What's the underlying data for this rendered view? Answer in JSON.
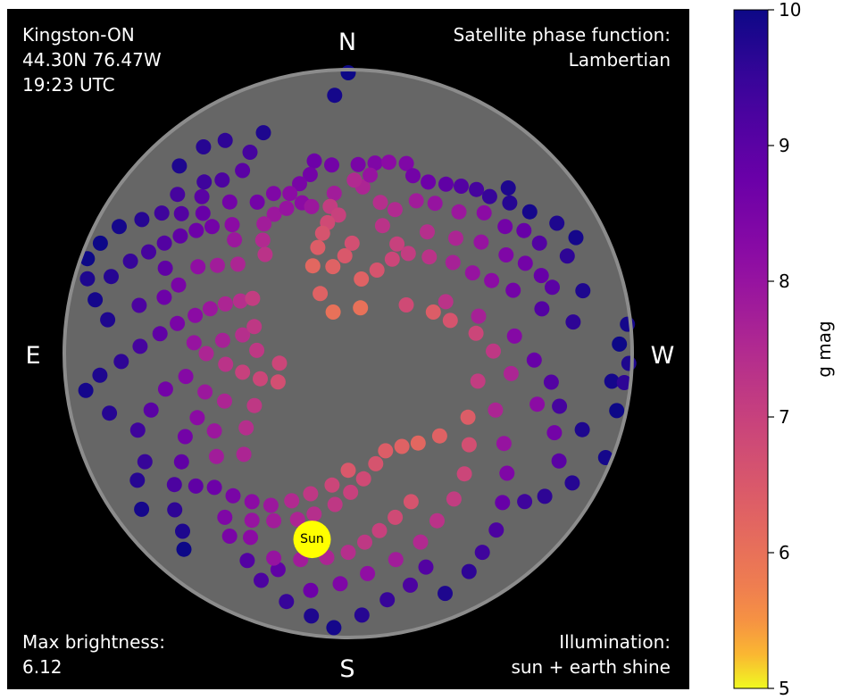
{
  "chart_data": {
    "type": "scatter",
    "projection": "polar sky map",
    "info": {
      "location": "Kingston-ON",
      "coords": "44.30N 76.47W",
      "time": "19:23 UTC",
      "phase_label": "Satellite phase function:",
      "phase_value": "Lambertian",
      "brightness_label": "Max brightness:",
      "brightness_value": "6.12",
      "illumination_label": "Illumination:",
      "illumination_value": "sun + earth shine"
    },
    "directions": {
      "north": "N",
      "south": "S",
      "east": "E",
      "west": "W"
    },
    "sun": {
      "label": "Sun",
      "az": 169,
      "alt": 30,
      "color": "#ffff00"
    },
    "colorbar": {
      "label": "g mag",
      "min": 5,
      "max": 10,
      "ticks": [
        "5",
        "6",
        "7",
        "8",
        "9",
        "10"
      ],
      "colormap": "plasma_r"
    },
    "background": "#000000",
    "sky_color": "#666666",
    "horizon_color": "#8c8c8c",
    "points": [
      [
        0,
        1,
        10
      ],
      [
        3,
        8,
        9.9
      ],
      [
        21,
        15,
        9.8
      ],
      [
        35,
        10,
        9.7
      ],
      [
        10,
        28,
        8.7
      ],
      [
        12,
        32,
        8.6
      ],
      [
        16,
        34,
        8.5
      ],
      [
        20,
        36,
        8.2
      ],
      [
        25,
        34,
        8.4
      ],
      [
        31,
        34,
        8.6
      ],
      [
        28,
        40,
        7.9
      ],
      [
        33,
        41,
        7.8
      ],
      [
        37,
        45,
        7.5
      ],
      [
        40,
        49,
        7.3
      ],
      [
        23,
        40,
        8.0
      ],
      [
        17,
        40,
        8.2
      ],
      [
        14,
        42,
        7.9
      ],
      [
        5,
        30,
        8.6
      ],
      [
        357,
        30,
        8.5
      ],
      [
        352,
        29,
        8.4
      ],
      [
        348,
        28,
        8.2
      ],
      [
        343,
        27,
        8.4
      ],
      [
        340,
        30,
        8.6
      ],
      [
        335,
        30,
        8.7
      ],
      [
        330,
        28,
        8.9
      ],
      [
        326,
        26,
        9.1
      ],
      [
        322,
        24,
        9.3
      ],
      [
        318,
        23,
        9.5
      ],
      [
        313,
        20,
        9.7
      ],
      [
        316,
        17,
        9.8
      ],
      [
        308,
        17,
        9.9
      ],
      [
        302,
        12,
        9.8
      ],
      [
        297,
        9,
        9.9
      ],
      [
        294,
        14,
        9.6
      ],
      [
        300,
        20,
        9.1
      ],
      [
        305,
        22,
        8.8
      ],
      [
        309,
        26,
        8.6
      ],
      [
        316,
        28,
        8.2
      ],
      [
        322,
        33,
        7.9
      ],
      [
        330,
        35,
        8.0
      ],
      [
        336,
        37,
        7.8
      ],
      [
        342,
        42,
        7.5
      ],
      [
        348,
        41,
        7.4
      ],
      [
        355,
        37,
        7.6
      ],
      [
        353,
        33,
        8.0
      ],
      [
        358,
        35,
        7.5
      ],
      [
        5,
        39,
        7.8
      ],
      [
        7,
        43,
        7.1
      ],
      [
        4,
        46,
        7.0
      ],
      [
        9,
        48,
        6.8
      ],
      [
        12,
        51,
        6.6
      ],
      [
        16,
        55,
        6.4
      ],
      [
        22,
        60,
        6.2
      ],
      [
        2,
        59,
        6.5
      ],
      [
        10,
        62,
        6.3
      ],
      [
        358,
        55,
        6.7
      ],
      [
        345,
        48,
        7.3
      ],
      [
        336,
        52,
        7.0
      ],
      [
        327,
        44,
        7.4
      ],
      [
        317,
        40,
        7.6
      ],
      [
        310,
        35,
        8.0
      ],
      [
        302,
        31,
        8.4
      ],
      [
        297,
        27,
        8.6
      ],
      [
        292,
        24,
        8.8
      ],
      [
        288,
        22,
        9.0
      ],
      [
        285,
        13,
        9.8
      ],
      [
        278,
        18,
        9.6
      ],
      [
        283,
        27,
        9.1
      ],
      [
        291,
        34,
        8.6
      ],
      [
        297,
        39,
        8.2
      ],
      [
        303,
        43,
        8.0
      ],
      [
        311,
        46,
        7.7
      ],
      [
        320,
        50,
        7.3
      ],
      [
        329,
        53,
        7.1
      ],
      [
        335,
        57,
        6.9
      ],
      [
        341,
        62,
        6.6
      ],
      [
        350,
        66,
        6.3
      ],
      [
        345,
        75,
        6.0
      ],
      [
        20,
        76,
        6.0
      ],
      [
        25,
        69,
        6.3
      ],
      [
        310,
        66,
        6.8
      ],
      [
        298,
        55,
        7.3
      ],
      [
        286,
        47,
        7.7
      ],
      [
        276,
        37,
        8.3
      ],
      [
        268,
        31,
        8.8
      ],
      [
        262,
        25,
        9.1
      ],
      [
        256,
        21,
        9.3
      ],
      [
        252,
        12,
        9.8
      ],
      [
        264,
        6,
        9.9
      ],
      [
        272,
        4,
        10
      ],
      [
        276,
        1,
        9.9
      ],
      [
        268,
        1,
        9.8
      ],
      [
        264,
        2,
        9.6
      ],
      [
        258,
        3,
        10
      ],
      [
        248,
        2,
        9.9
      ],
      [
        240,
        8,
        9.7
      ],
      [
        234,
        13,
        9.6
      ],
      [
        230,
        17,
        9.4
      ],
      [
        243,
        15,
        9.0
      ],
      [
        249,
        20,
        8.6
      ],
      [
        255,
        28,
        8.2
      ],
      [
        263,
        38,
        7.6
      ],
      [
        271,
        44,
        7.2
      ],
      [
        279,
        49,
        6.9
      ],
      [
        288,
        56,
        6.6
      ],
      [
        296,
        60,
        6.4
      ],
      [
        258,
        48,
        7.1
      ],
      [
        249,
        40,
        7.6
      ],
      [
        240,
        33,
        8.0
      ],
      [
        233,
        27,
        8.4
      ],
      [
        226,
        22,
        8.8
      ],
      [
        220,
        17,
        9.2
      ],
      [
        214,
        14,
        9.4
      ],
      [
        209,
        11,
        9.6
      ],
      [
        202,
        8,
        9.8
      ],
      [
        200,
        18,
        9.1
      ],
      [
        195,
        14,
        9.2
      ],
      [
        189,
        11,
        9.5
      ],
      [
        183,
        7,
        9.7
      ],
      [
        177,
        3,
        9.9
      ],
      [
        172,
        6,
        9.8
      ],
      [
        166,
        9,
        9.5
      ],
      [
        159,
        13,
        9.2
      ],
      [
        154,
        17,
        9.1
      ],
      [
        162,
        18,
        8.9
      ],
      [
        171,
        14,
        8.7
      ],
      [
        178,
        17,
        8.4
      ],
      [
        185,
        20,
        8.1
      ],
      [
        193,
        23,
        7.8
      ],
      [
        201,
        26,
        7.5
      ],
      [
        208,
        30,
        7.3
      ],
      [
        216,
        33,
        7.1
      ],
      [
        224,
        37,
        6.9
      ],
      [
        233,
        42,
        6.7
      ],
      [
        242,
        47,
        6.4
      ],
      [
        203,
        39,
        6.6
      ],
      [
        196,
        36,
        6.8
      ],
      [
        190,
        33,
        7.0
      ],
      [
        185,
        30,
        7.2
      ],
      [
        180,
        27,
        7.4
      ],
      [
        174,
        25,
        7.6
      ],
      [
        167,
        23,
        7.8
      ],
      [
        160,
        21,
        8.0
      ],
      [
        152,
        24,
        8.2
      ],
      [
        147,
        21,
        8.5
      ],
      [
        143,
        25,
        8.4
      ],
      [
        150,
        29,
        8.0
      ],
      [
        156,
        32,
        7.8
      ],
      [
        163,
        35,
        7.6
      ],
      [
        168,
        38,
        7.4
      ],
      [
        175,
        42,
        7.2
      ],
      [
        181,
        46,
        7.0
      ],
      [
        187,
        50,
        6.8
      ],
      [
        194,
        54,
        6.6
      ],
      [
        201,
        57,
        6.4
      ],
      [
        210,
        56,
        6.3
      ],
      [
        218,
        54,
        6.2
      ],
      [
        228,
        51,
        6.3
      ],
      [
        180,
        53,
        6.5
      ],
      [
        173,
        48,
        6.9
      ],
      [
        165,
        44,
        7.2
      ],
      [
        159,
        40,
        7.5
      ],
      [
        153,
        36,
        7.9
      ],
      [
        147,
        34,
        8.2
      ],
      [
        141,
        32,
        8.5
      ],
      [
        135,
        30,
        8.7
      ],
      [
        131,
        26,
        8.9
      ],
      [
        127,
        21,
        9.2
      ],
      [
        132,
        16,
        9.6
      ],
      [
        137,
        13,
        9.8
      ],
      [
        140,
        9,
        10
      ],
      [
        127,
        8,
        9.9
      ],
      [
        121,
        12,
        9.7
      ],
      [
        118,
        17,
        9.5
      ],
      [
        123,
        27,
        8.9
      ],
      [
        117,
        32,
        8.6
      ],
      [
        113,
        38,
        8.2
      ],
      [
        120,
        41,
        7.9
      ],
      [
        128,
        37,
        7.8
      ],
      [
        134,
        44,
        7.6
      ],
      [
        126,
        50,
        7.4
      ],
      [
        119,
        56,
        7.2
      ],
      [
        111,
        48,
        7.6
      ],
      [
        105,
        43,
        7.9
      ],
      [
        98,
        38,
        8.3
      ],
      [
        101,
        31,
        8.6
      ],
      [
        106,
        25,
        9.0
      ],
      [
        110,
        19,
        9.4
      ],
      [
        104,
        12,
        9.7
      ],
      [
        98,
        6,
        9.9
      ],
      [
        95,
        11,
        9.8
      ],
      [
        92,
        18,
        9.6
      ],
      [
        88,
        24,
        9.3
      ],
      [
        84,
        30,
        8.9
      ],
      [
        80,
        35,
        8.5
      ],
      [
        76,
        40,
        8.2
      ],
      [
        72,
        44,
        7.9
      ],
      [
        68,
        48,
        7.6
      ],
      [
        64,
        52,
        7.4
      ],
      [
        60,
        55,
        7.1
      ],
      [
        90,
        45,
        7.6
      ],
      [
        95,
        51,
        7.3
      ],
      [
        100,
        56,
        7.0
      ],
      [
        106,
        61,
        6.9
      ],
      [
        112,
        66,
        6.7
      ],
      [
        98,
        68,
        6.9
      ],
      [
        88,
        61,
        7.2
      ],
      [
        80,
        56,
        7.4
      ],
      [
        74,
        59,
        7.2
      ],
      [
        84,
        50,
        7.7
      ],
      [
        86,
        41,
        8.0
      ],
      [
        82,
        13,
        9.8
      ],
      [
        78,
        8,
        9.9
      ],
      [
        72,
        11,
        9.7
      ],
      [
        67,
        15,
        9.5
      ],
      [
        63,
        19,
        9.3
      ],
      [
        59,
        22,
        9.1
      ],
      [
        55,
        25,
        8.9
      ],
      [
        51,
        28,
        8.7
      ],
      [
        47,
        31,
        8.6
      ],
      [
        46,
        26,
        8.8
      ],
      [
        50,
        21,
        9.1
      ],
      [
        53,
        16,
        9.4
      ],
      [
        57,
        12,
        9.7
      ],
      [
        61,
        7,
        9.9
      ],
      [
        66,
        4,
        10
      ],
      [
        70,
        2,
        10
      ],
      [
        74,
        4,
        9.8
      ],
      [
        65,
        26,
        8.9
      ],
      [
        68,
        32,
        8.5
      ],
      [
        73,
        29,
        8.7
      ],
      [
        77,
        22,
        9.2
      ],
      [
        60,
        35,
        8.1
      ],
      [
        56,
        40,
        7.8
      ],
      [
        51,
        45,
        7.6
      ],
      [
        45,
        39,
        7.9
      ],
      [
        42,
        35,
        8.2
      ],
      [
        38,
        29,
        8.6
      ],
      [
        43,
        22,
        9.0
      ],
      [
        47,
        16,
        9.3
      ],
      [
        40,
        19,
        9.4
      ],
      [
        36,
        22,
        9.2
      ],
      [
        30,
        23,
        9.0
      ],
      [
        26,
        19,
        9.3
      ],
      [
        30,
        12,
        9.6
      ],
      [
        42,
        10,
        9.8
      ]
    ]
  }
}
